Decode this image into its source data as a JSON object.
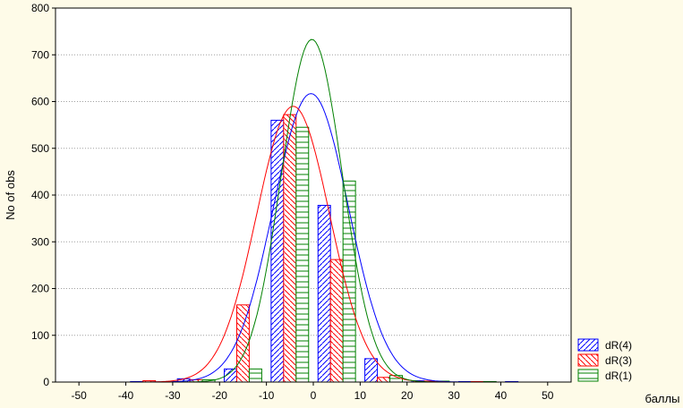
{
  "chart_data": {
    "type": "bar",
    "xlabel": "баллы",
    "ylabel": "No of obs",
    "xlim": [
      -55,
      55
    ],
    "ylim": [
      0,
      800
    ],
    "xticks": [
      -50,
      -40,
      -30,
      -20,
      -10,
      0,
      10,
      20,
      30,
      40,
      50
    ],
    "yticks": [
      0,
      100,
      200,
      300,
      400,
      500,
      600,
      700,
      800
    ],
    "grid": "horizontal dotted",
    "legend_position": "bottom-right",
    "bin_centers": [
      -35,
      -25,
      -15,
      -5,
      5,
      15,
      25,
      35,
      45
    ],
    "series": [
      {
        "name": "dR(4)",
        "color": "#0000ff",
        "values": [
          1,
          7,
          28,
          560,
          378,
          50,
          3,
          1,
          1
        ],
        "fit": {
          "mean": -0.5,
          "peak": 617,
          "sd": 8.0
        }
      },
      {
        "name": "dR(3)",
        "color": "#ff0000",
        "values": [
          3,
          5,
          165,
          572,
          262,
          10,
          2,
          1,
          0
        ],
        "fit": {
          "mean": -4.3,
          "peak": 590,
          "sd": 7.8
        }
      },
      {
        "name": "dR(1)",
        "color": "#008000",
        "values": [
          0,
          5,
          28,
          545,
          430,
          14,
          2,
          1,
          0
        ],
        "fit": {
          "mean": -0.3,
          "peak": 733,
          "sd": 6.5
        }
      }
    ]
  }
}
